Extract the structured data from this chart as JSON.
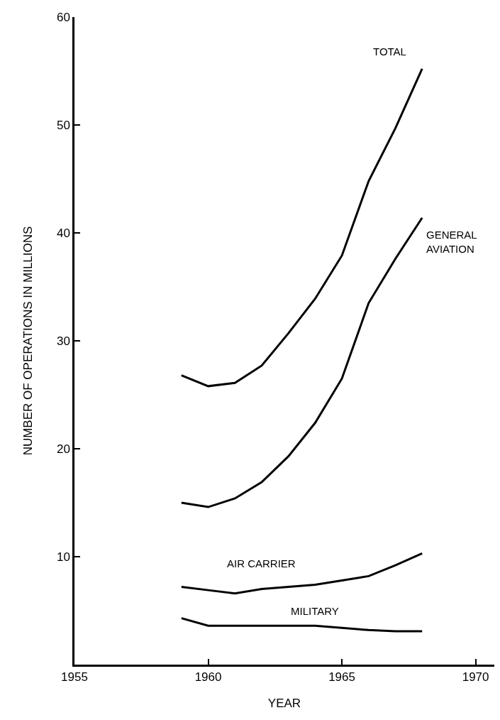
{
  "chart_data": {
    "type": "line",
    "xlabel": "YEAR",
    "ylabel": "NUMBER OF OPERATIONS IN MILLIONS",
    "x": [
      1959,
      1960,
      1961,
      1962,
      1963,
      1964,
      1965,
      1966,
      1967,
      1968
    ],
    "series": [
      {
        "name": "TOTAL",
        "color": "#000000",
        "values": [
          26.8,
          25.8,
          26.1,
          27.7,
          30.7,
          33.9,
          37.9,
          44.8,
          49.7,
          55.2
        ]
      },
      {
        "name": "GENERAL AVIATION",
        "color": "#000000",
        "values": [
          15.0,
          14.6,
          15.4,
          16.9,
          19.3,
          22.4,
          26.5,
          33.5,
          37.6,
          41.4
        ]
      },
      {
        "name": "AIR CARRIER",
        "color": "#000000",
        "values": [
          7.2,
          6.9,
          6.6,
          7.0,
          7.2,
          7.4,
          7.8,
          8.2,
          9.2,
          10.3
        ]
      },
      {
        "name": "MILITARY",
        "color": "#000000",
        "values": [
          4.3,
          3.6,
          3.6,
          3.6,
          3.6,
          3.6,
          3.4,
          3.2,
          3.1,
          3.1
        ]
      }
    ],
    "xlim": [
      1955,
      1970.7
    ],
    "xticks": [
      1955,
      1960,
      1965,
      1970
    ],
    "ylim": [
      0,
      60
    ],
    "yticks": [
      10,
      20,
      30,
      40,
      50,
      60
    ],
    "grid": false,
    "legend": false,
    "marker": "none",
    "line_style": "solid"
  }
}
